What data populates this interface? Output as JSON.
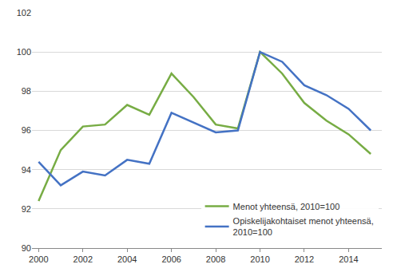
{
  "chart_data": {
    "type": "line",
    "x": [
      2000,
      2001,
      2002,
      2003,
      2004,
      2005,
      2006,
      2007,
      2008,
      2009,
      2010,
      2011,
      2012,
      2013,
      2014,
      2015
    ],
    "series": [
      {
        "name": "Menot yhteensä, 2010=100",
        "color": "#77ac44",
        "values": [
          92.4,
          95.0,
          96.2,
          96.3,
          97.3,
          96.8,
          98.9,
          97.7,
          96.3,
          96.1,
          100,
          98.9,
          97.4,
          96.5,
          95.8,
          94.8
        ]
      },
      {
        "name": "Opiskelijakohtaiset menot yhteensä, 2010=100",
        "color": "#4472c4",
        "values": [
          94.4,
          93.2,
          93.9,
          93.7,
          94.5,
          94.3,
          96.9,
          96.4,
          95.9,
          96.0,
          100,
          99.5,
          98.3,
          97.8,
          97.1,
          96.0
        ]
      }
    ],
    "xlim": [
      1999.7,
      2015.5
    ],
    "xticks": [
      2000,
      2002,
      2004,
      2006,
      2008,
      2010,
      2012,
      2014
    ],
    "ylim": [
      90,
      102
    ],
    "yticks": [
      90,
      92,
      94,
      96,
      98,
      100,
      102
    ],
    "grid": true,
    "legend": "lower right"
  }
}
